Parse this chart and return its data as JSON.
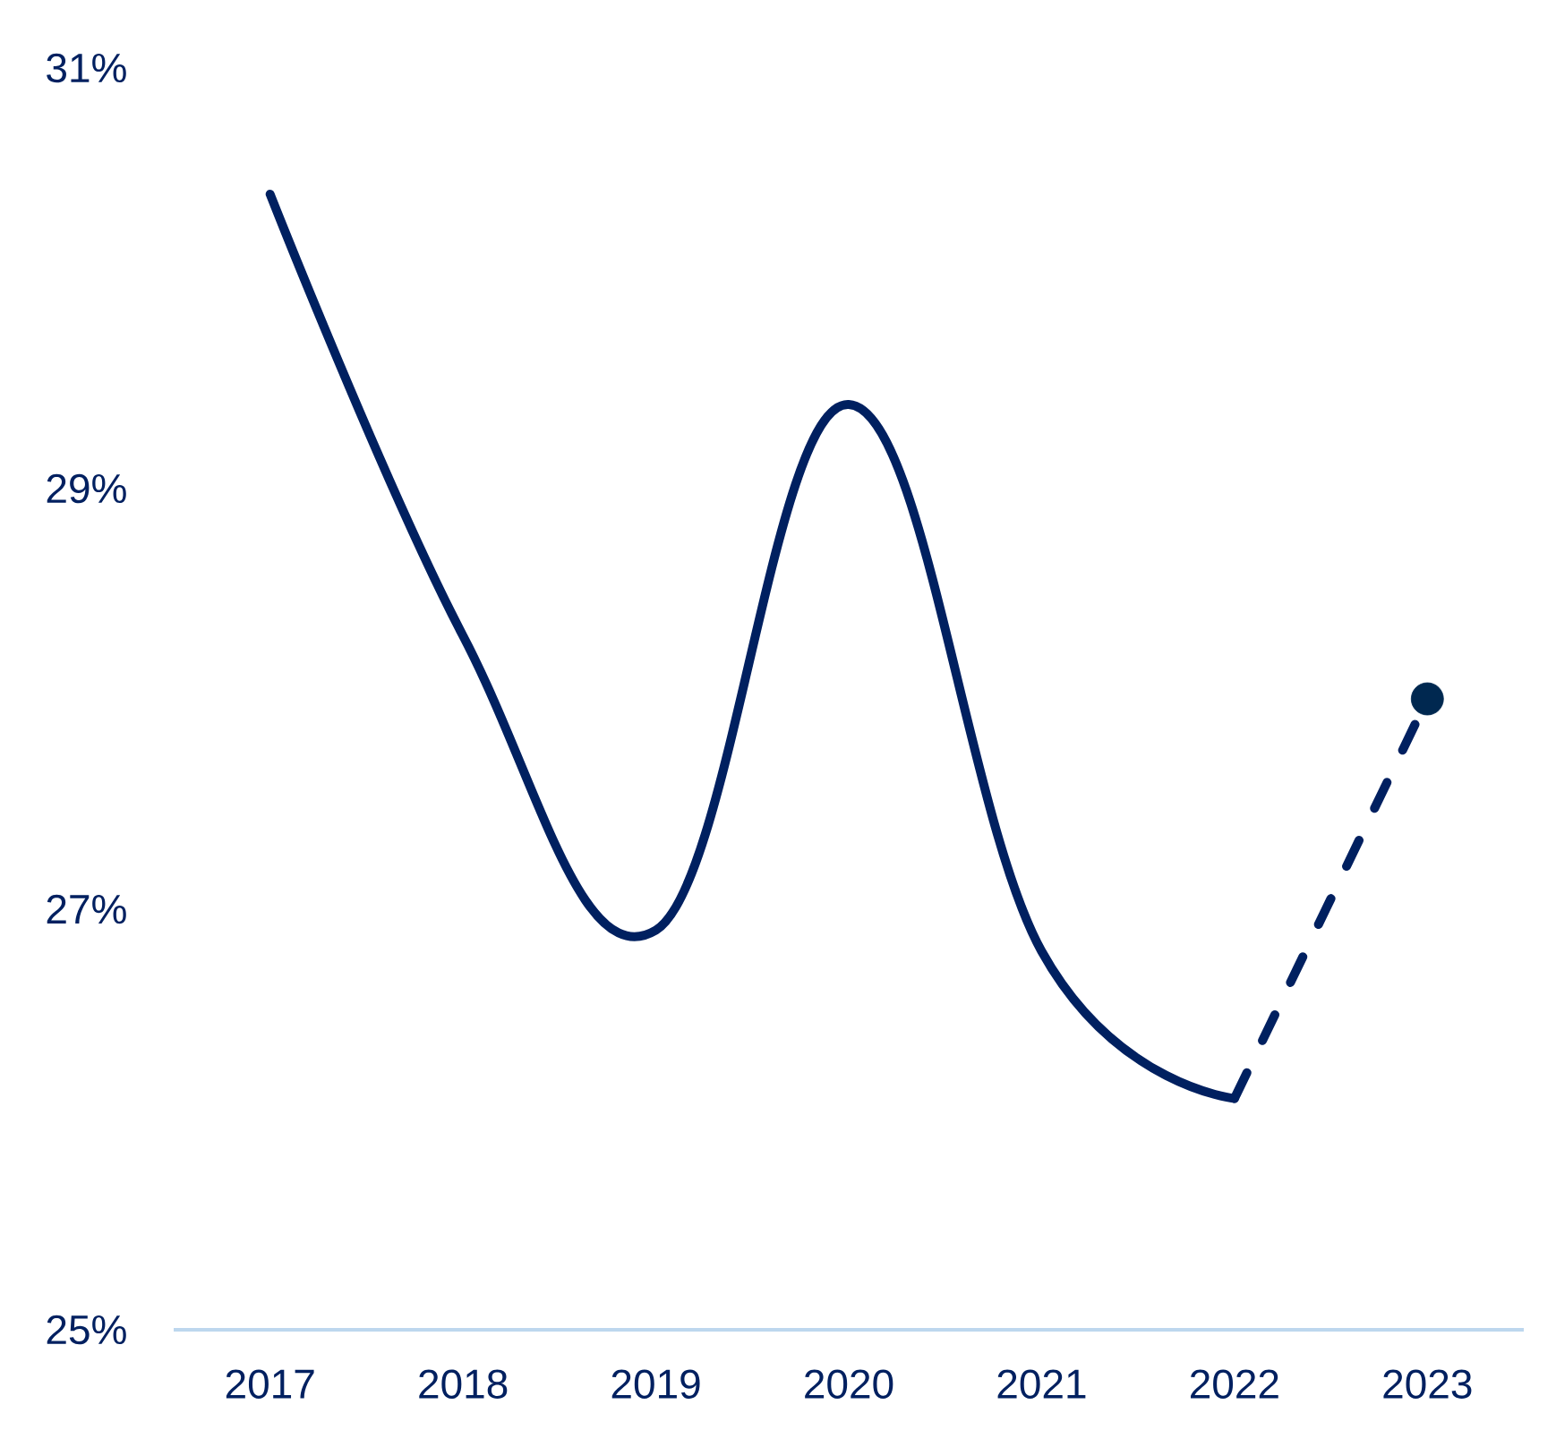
{
  "chart_data": {
    "type": "line",
    "categories": [
      "2017",
      "2018",
      "2019",
      "2020",
      "2021",
      "2022",
      "2023"
    ],
    "series": [
      {
        "color": "#002060",
        "values": [
          30.4,
          28.3,
          26.9,
          29.4,
          26.8,
          26.1,
          null
        ],
        "line_style": "solid",
        "marker": "none"
      },
      {
        "color": "#002060",
        "values": [
          null,
          null,
          null,
          null,
          null,
          26.1,
          28.0
        ],
        "line_style": "dashed",
        "marker": "none"
      },
      {
        "type": "scatter",
        "color": "#002850",
        "values": [
          null,
          null,
          null,
          null,
          null,
          null,
          28.0
        ],
        "marker": "circle"
      }
    ],
    "ylim": [
      25,
      31
    ],
    "yticks": [
      {
        "value": 25,
        "label": "25%"
      },
      {
        "value": 27,
        "label": "27%"
      },
      {
        "value": 29,
        "label": "29%"
      },
      {
        "value": 31,
        "label": "31%"
      }
    ]
  }
}
